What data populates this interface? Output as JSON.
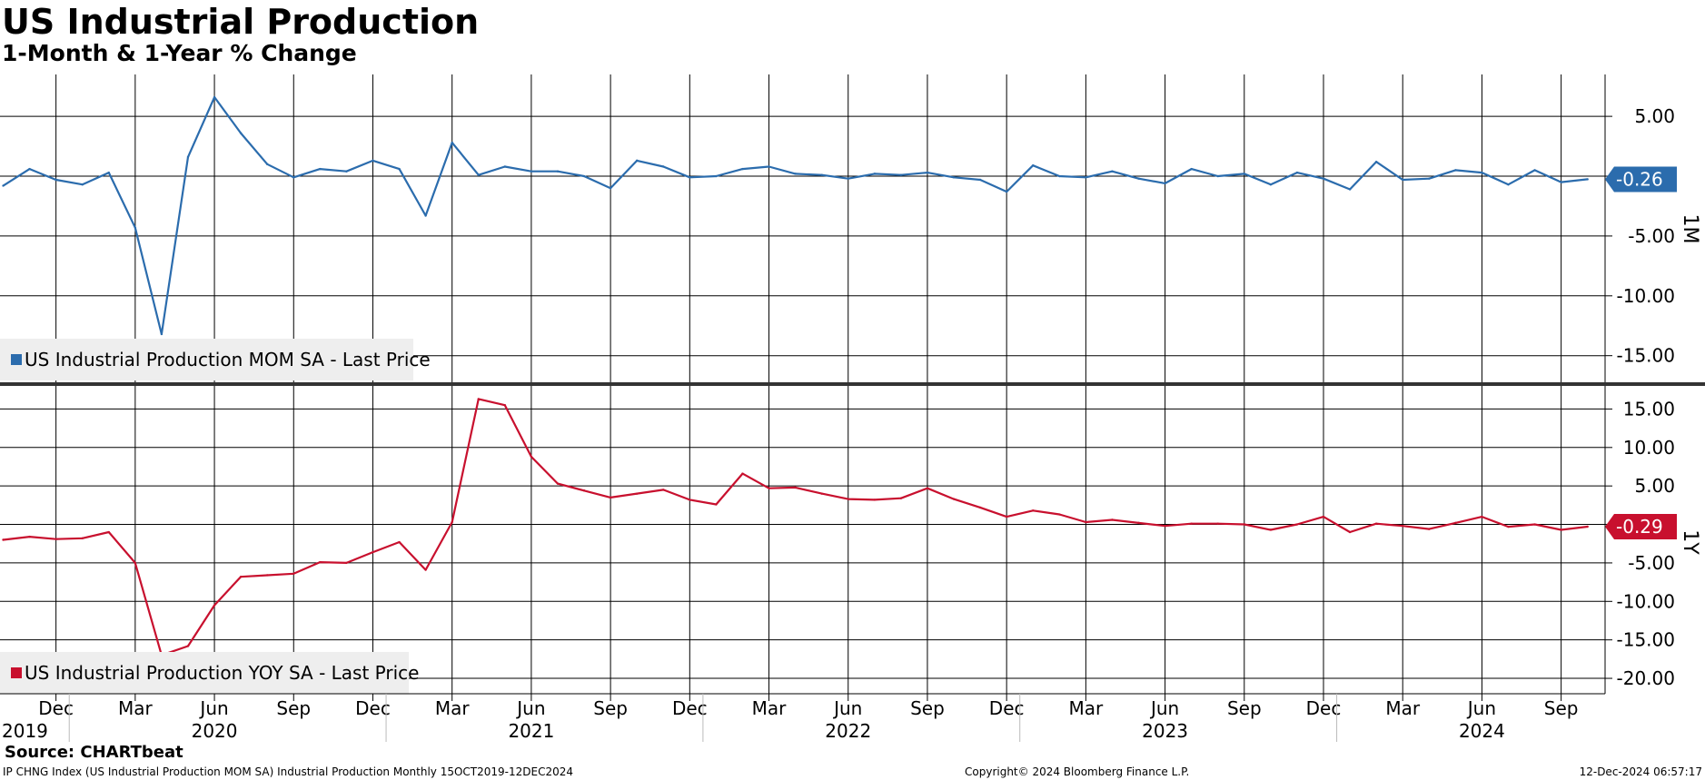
{
  "title": "US Industrial Production",
  "subtitle": "1-Month & 1-Year % Change",
  "source": "Source: CHARTbeat",
  "footer": {
    "left": "IP CHNG Index (US Industrial Production MOM SA) Industrial Production  Monthly 15OCT2019-12DEC2024",
    "center": "Copyright© 2024 Bloomberg Finance L.P.",
    "right": "12-Dec-2024 06:57:17"
  },
  "colors": {
    "mom": "#2b6cad",
    "yoy": "#c8102e",
    "grid": "#000000",
    "legend_bg": "#eeeeee"
  },
  "chart_data": [
    {
      "type": "line",
      "name": "top-panel",
      "axis_label": "1M",
      "legend": "US Industrial Production MOM SA - Last Price",
      "ylim": [
        -17.3,
        8.5
      ],
      "yticks": [
        5,
        0,
        -5,
        -10,
        -15
      ],
      "ytick_labels": [
        "5.00",
        "",
        "-5.00",
        "-10.00",
        "-15.00"
      ],
      "last_value_label": "-0.26",
      "last_value": -0.26,
      "x": [
        "2019-10",
        "2019-11",
        "2019-12",
        "2020-01",
        "2020-02",
        "2020-03",
        "2020-04",
        "2020-05",
        "2020-06",
        "2020-07",
        "2020-08",
        "2020-09",
        "2020-10",
        "2020-11",
        "2020-12",
        "2021-01",
        "2021-02",
        "2021-03",
        "2021-04",
        "2021-05",
        "2021-06",
        "2021-07",
        "2021-08",
        "2021-09",
        "2021-10",
        "2021-11",
        "2021-12",
        "2022-01",
        "2022-02",
        "2022-03",
        "2022-04",
        "2022-05",
        "2022-06",
        "2022-07",
        "2022-08",
        "2022-09",
        "2022-10",
        "2022-11",
        "2022-12",
        "2023-01",
        "2023-02",
        "2023-03",
        "2023-04",
        "2023-05",
        "2023-06",
        "2023-07",
        "2023-08",
        "2023-09",
        "2023-10",
        "2023-11",
        "2023-12",
        "2024-01",
        "2024-02",
        "2024-03",
        "2024-04",
        "2024-05",
        "2024-06",
        "2024-07",
        "2024-08",
        "2024-09",
        "2024-10"
      ],
      "values": [
        -0.8,
        0.6,
        -0.3,
        -0.7,
        0.3,
        -4.3,
        -13.2,
        1.6,
        6.6,
        3.6,
        1.0,
        -0.1,
        0.6,
        0.4,
        1.3,
        0.6,
        -3.3,
        2.8,
        0.1,
        0.8,
        0.4,
        0.4,
        0.0,
        -1.0,
        1.3,
        0.8,
        -0.1,
        0.0,
        0.6,
        0.8,
        0.2,
        0.1,
        -0.2,
        0.2,
        0.1,
        0.3,
        -0.1,
        -0.3,
        -1.3,
        0.9,
        0.0,
        -0.1,
        0.4,
        -0.2,
        -0.6,
        0.6,
        0.0,
        0.2,
        -0.7,
        0.3,
        -0.2,
        -1.1,
        1.2,
        -0.3,
        -0.2,
        0.5,
        0.3,
        -0.7,
        0.5,
        -0.5,
        -0.26
      ]
    },
    {
      "type": "line",
      "name": "bottom-panel",
      "axis_label": "1Y",
      "legend": "US Industrial Production YOY SA - Last Price",
      "ylim": [
        -22,
        18
      ],
      "yticks": [
        15,
        10,
        5,
        0,
        -5,
        -10,
        -15,
        -20
      ],
      "ytick_labels": [
        "15.00",
        "10.00",
        "5.00",
        "",
        "-5.00",
        "-10.00",
        "-15.00",
        "-20.00"
      ],
      "last_value_label": "-0.29",
      "last_value": -0.29,
      "x": [
        "2019-10",
        "2019-11",
        "2019-12",
        "2020-01",
        "2020-02",
        "2020-03",
        "2020-04",
        "2020-05",
        "2020-06",
        "2020-07",
        "2020-08",
        "2020-09",
        "2020-10",
        "2020-11",
        "2020-12",
        "2021-01",
        "2021-02",
        "2021-03",
        "2021-04",
        "2021-05",
        "2021-06",
        "2021-07",
        "2021-08",
        "2021-09",
        "2021-10",
        "2021-11",
        "2021-12",
        "2022-01",
        "2022-02",
        "2022-03",
        "2022-04",
        "2022-05",
        "2022-06",
        "2022-07",
        "2022-08",
        "2022-09",
        "2022-10",
        "2022-11",
        "2022-12",
        "2023-01",
        "2023-02",
        "2023-03",
        "2023-04",
        "2023-05",
        "2023-06",
        "2023-07",
        "2023-08",
        "2023-09",
        "2023-10",
        "2023-11",
        "2023-12",
        "2024-01",
        "2024-02",
        "2024-03",
        "2024-04",
        "2024-05",
        "2024-06",
        "2024-07",
        "2024-08",
        "2024-09",
        "2024-10"
      ],
      "values": [
        -2.0,
        -1.6,
        -1.9,
        -1.8,
        -1.0,
        -5.0,
        -17.0,
        -15.8,
        -10.5,
        -6.8,
        -6.6,
        -6.4,
        -4.9,
        -5.0,
        -3.6,
        -2.3,
        -5.9,
        0.3,
        16.3,
        15.5,
        8.8,
        5.3,
        4.4,
        3.5,
        4.0,
        4.5,
        3.2,
        2.6,
        6.6,
        4.7,
        4.8,
        4.0,
        3.3,
        3.2,
        3.4,
        4.7,
        3.3,
        2.2,
        1.0,
        1.8,
        1.3,
        0.3,
        0.6,
        0.2,
        -0.2,
        0.1,
        0.1,
        0.0,
        -0.7,
        0.0,
        1.0,
        -1.0,
        0.1,
        -0.2,
        -0.6,
        0.2,
        1.0,
        -0.3,
        0.0,
        -0.7,
        -0.29
      ]
    }
  ],
  "x_axis": {
    "month_ticks": [
      {
        "date": "2019-12",
        "label": "Dec"
      },
      {
        "date": "2020-03",
        "label": "Mar"
      },
      {
        "date": "2020-06",
        "label": "Jun"
      },
      {
        "date": "2020-09",
        "label": "Sep"
      },
      {
        "date": "2020-12",
        "label": "Dec"
      },
      {
        "date": "2021-03",
        "label": "Mar"
      },
      {
        "date": "2021-06",
        "label": "Jun"
      },
      {
        "date": "2021-09",
        "label": "Sep"
      },
      {
        "date": "2021-12",
        "label": "Dec"
      },
      {
        "date": "2022-03",
        "label": "Mar"
      },
      {
        "date": "2022-06",
        "label": "Jun"
      },
      {
        "date": "2022-09",
        "label": "Sep"
      },
      {
        "date": "2022-12",
        "label": "Dec"
      },
      {
        "date": "2023-03",
        "label": "Mar"
      },
      {
        "date": "2023-06",
        "label": "Jun"
      },
      {
        "date": "2023-09",
        "label": "Sep"
      },
      {
        "date": "2023-12",
        "label": "Dec"
      },
      {
        "date": "2024-03",
        "label": "Mar"
      },
      {
        "date": "2024-06",
        "label": "Jun"
      },
      {
        "date": "2024-09",
        "label": "Sep"
      }
    ],
    "year_labels": [
      {
        "date": "2019-10",
        "label": "2019"
      },
      {
        "date": "2020-06",
        "label": "2020"
      },
      {
        "date": "2021-06",
        "label": "2021"
      },
      {
        "date": "2022-06",
        "label": "2022"
      },
      {
        "date": "2023-06",
        "label": "2023"
      },
      {
        "date": "2024-06",
        "label": "2024"
      }
    ],
    "year_separators": [
      "2020-01",
      "2021-01",
      "2022-01",
      "2023-01",
      "2024-01"
    ]
  }
}
